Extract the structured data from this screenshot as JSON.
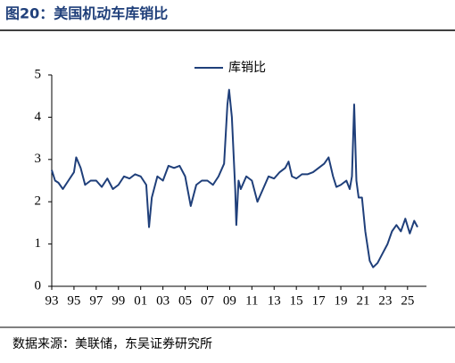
{
  "chart_data": {
    "type": "line",
    "title": "图20：美国机动车库销比",
    "source": "数据来源：美联储，东吴证券研究所",
    "x": [
      1993,
      1993.3,
      1993.6,
      1994,
      1994.5,
      1995,
      1995.2,
      1995.6,
      1996,
      1996.5,
      1997,
      1997.5,
      1998,
      1998.5,
      1999,
      1999.5,
      2000,
      2000.5,
      2001,
      2001.5,
      2001.75,
      2002,
      2002.5,
      2003,
      2003.5,
      2004,
      2004.5,
      2005,
      2005.5,
      2006,
      2006.5,
      2007,
      2007.5,
      2008,
      2008.5,
      2008.8,
      2008.95,
      2009.2,
      2009.5,
      2009.6,
      2009.8,
      2010,
      2010.5,
      2011,
      2011.5,
      2012,
      2012.5,
      2013,
      2013.5,
      2014,
      2014.3,
      2014.6,
      2015,
      2015.5,
      2016,
      2016.5,
      2017,
      2017.5,
      2017.9,
      2018.3,
      2018.6,
      2019,
      2019.5,
      2019.8,
      2020,
      2020.2,
      2020.4,
      2020.6,
      2020.9,
      2021.2,
      2021.6,
      2021.9,
      2022.3,
      2022.8,
      2023.2,
      2023.6,
      2024,
      2024.4,
      2024.8,
      2025.2,
      2025.6,
      2025.9
    ],
    "series": [
      {
        "name": "库销比",
        "color": "#1f3f7a",
        "values": [
          2.75,
          2.5,
          2.45,
          2.3,
          2.5,
          2.7,
          3.05,
          2.8,
          2.4,
          2.5,
          2.5,
          2.35,
          2.55,
          2.3,
          2.4,
          2.6,
          2.55,
          2.65,
          2.6,
          2.4,
          1.4,
          2.1,
          2.6,
          2.5,
          2.85,
          2.8,
          2.85,
          2.6,
          1.9,
          2.4,
          2.5,
          2.5,
          2.4,
          2.6,
          2.9,
          4.3,
          4.65,
          4.0,
          2.3,
          1.45,
          2.5,
          2.3,
          2.6,
          2.5,
          2.0,
          2.3,
          2.6,
          2.55,
          2.7,
          2.8,
          2.95,
          2.6,
          2.55,
          2.65,
          2.65,
          2.7,
          2.8,
          2.9,
          3.05,
          2.6,
          2.35,
          2.4,
          2.5,
          2.3,
          2.6,
          4.3,
          2.5,
          2.1,
          2.1,
          1.3,
          0.6,
          0.45,
          0.55,
          0.8,
          1.0,
          1.3,
          1.45,
          1.3,
          1.6,
          1.25,
          1.55,
          1.4
        ]
      }
    ],
    "xlim": [
      1993,
      2026.7
    ],
    "xticks": [
      {
        "value": 1993,
        "label": "93"
      },
      {
        "value": 1995,
        "label": "95"
      },
      {
        "value": 1997,
        "label": "97"
      },
      {
        "value": 1999,
        "label": "99"
      },
      {
        "value": 2001,
        "label": "01"
      },
      {
        "value": 2003,
        "label": "03"
      },
      {
        "value": 2005,
        "label": "05"
      },
      {
        "value": 2007,
        "label": "07"
      },
      {
        "value": 2009,
        "label": "09"
      },
      {
        "value": 2011,
        "label": "11"
      },
      {
        "value": 2013,
        "label": "13"
      },
      {
        "value": 2015,
        "label": "15"
      },
      {
        "value": 2017,
        "label": "17"
      },
      {
        "value": 2019,
        "label": "19"
      },
      {
        "value": 2021,
        "label": "21"
      },
      {
        "value": 2023,
        "label": "23"
      },
      {
        "value": 2025,
        "label": "25"
      }
    ],
    "ylim": [
      0,
      5
    ],
    "yticks": [
      0,
      1,
      2,
      3,
      4,
      5
    ],
    "legend": "top"
  }
}
